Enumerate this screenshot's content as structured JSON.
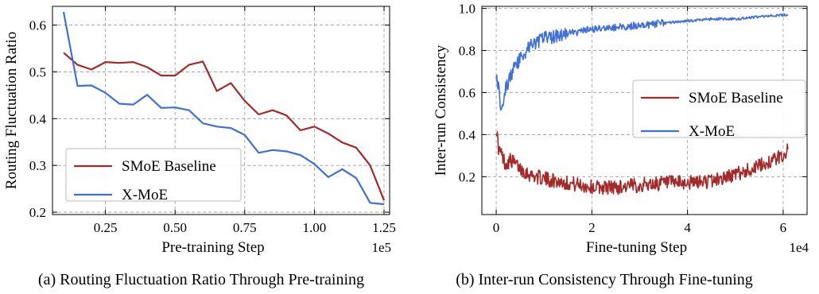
{
  "chart_data": [
    {
      "type": "line",
      "xlabel": "Pre-training Step",
      "ylabel": "Routing Fluctuation Ratio",
      "x_multiplier": "1e5",
      "xlim": [
        0.06,
        1.27
      ],
      "ylim": [
        0.195,
        0.64
      ],
      "xticks": [
        0.25,
        0.5,
        0.75,
        1.0,
        1.25
      ],
      "xtick_labels": [
        "0.25",
        "0.50",
        "0.75",
        "1.00",
        "1.25"
      ],
      "yticks": [
        0.2,
        0.3,
        0.4,
        0.5,
        0.6
      ],
      "ytick_labels": [
        "0.2",
        "0.3",
        "0.4",
        "0.5",
        "0.6"
      ],
      "grid": true,
      "legend_position": "lower-left",
      "caption": "(a) Routing Fluctuation Ratio Through Pre-training",
      "x": [
        0.1,
        0.15,
        0.2,
        0.25,
        0.3,
        0.35,
        0.4,
        0.45,
        0.5,
        0.55,
        0.6,
        0.65,
        0.7,
        0.75,
        0.8,
        0.85,
        0.9,
        0.95,
        1.0,
        1.05,
        1.1,
        1.15,
        1.2,
        1.25
      ],
      "series": [
        {
          "name": "SMoE Baseline",
          "color": "#a32a2a",
          "values": [
            0.541,
            0.515,
            0.505,
            0.521,
            0.519,
            0.521,
            0.51,
            0.492,
            0.492,
            0.515,
            0.522,
            0.459,
            0.476,
            0.438,
            0.409,
            0.418,
            0.407,
            0.375,
            0.383,
            0.368,
            0.349,
            0.338,
            0.3,
            0.225
          ]
        },
        {
          "name": "X-MoE",
          "color": "#3f6fd8",
          "values": [
            0.628,
            0.47,
            0.471,
            0.455,
            0.432,
            0.43,
            0.451,
            0.423,
            0.424,
            0.418,
            0.39,
            0.383,
            0.38,
            0.365,
            0.327,
            0.333,
            0.33,
            0.322,
            0.303,
            0.275,
            0.292,
            0.273,
            0.22,
            0.217
          ]
        }
      ]
    },
    {
      "type": "line",
      "xlabel": "Fine-tuning Step",
      "ylabel": "Inter-run Consistency",
      "x_multiplier": "1e4",
      "xlim": [
        -0.3,
        6.5
      ],
      "ylim": [
        0.02,
        1.01
      ],
      "xticks": [
        0,
        2,
        4,
        6
      ],
      "xtick_labels": [
        "0",
        "2",
        "4",
        "6"
      ],
      "yticks": [
        0.2,
        0.4,
        0.6,
        0.8,
        1.0
      ],
      "ytick_labels": [
        "0.2",
        "0.4",
        "0.6",
        "0.8",
        "1.0"
      ],
      "grid": true,
      "legend_position": "center-right",
      "caption": "(b) Inter-run Consistency Through Fine-tuning",
      "x": [
        0.0,
        0.05,
        0.1,
        0.2,
        0.3,
        0.5,
        0.7,
        1.0,
        1.5,
        2.0,
        2.5,
        3.0,
        3.5,
        4.0,
        4.5,
        5.0,
        5.5,
        6.0,
        6.1
      ],
      "series": [
        {
          "name": "SMoE Baseline",
          "color": "#a32a2a",
          "values": [
            0.44,
            0.33,
            0.31,
            0.26,
            0.28,
            0.24,
            0.21,
            0.19,
            0.17,
            0.15,
            0.15,
            0.16,
            0.17,
            0.17,
            0.18,
            0.21,
            0.25,
            0.3,
            0.33
          ]
        },
        {
          "name": "X-MoE",
          "color": "#3f6fd8",
          "values": [
            0.7,
            0.62,
            0.53,
            0.62,
            0.68,
            0.76,
            0.82,
            0.86,
            0.88,
            0.9,
            0.91,
            0.92,
            0.93,
            0.94,
            0.95,
            0.95,
            0.96,
            0.97,
            0.97
          ]
        }
      ]
    }
  ]
}
